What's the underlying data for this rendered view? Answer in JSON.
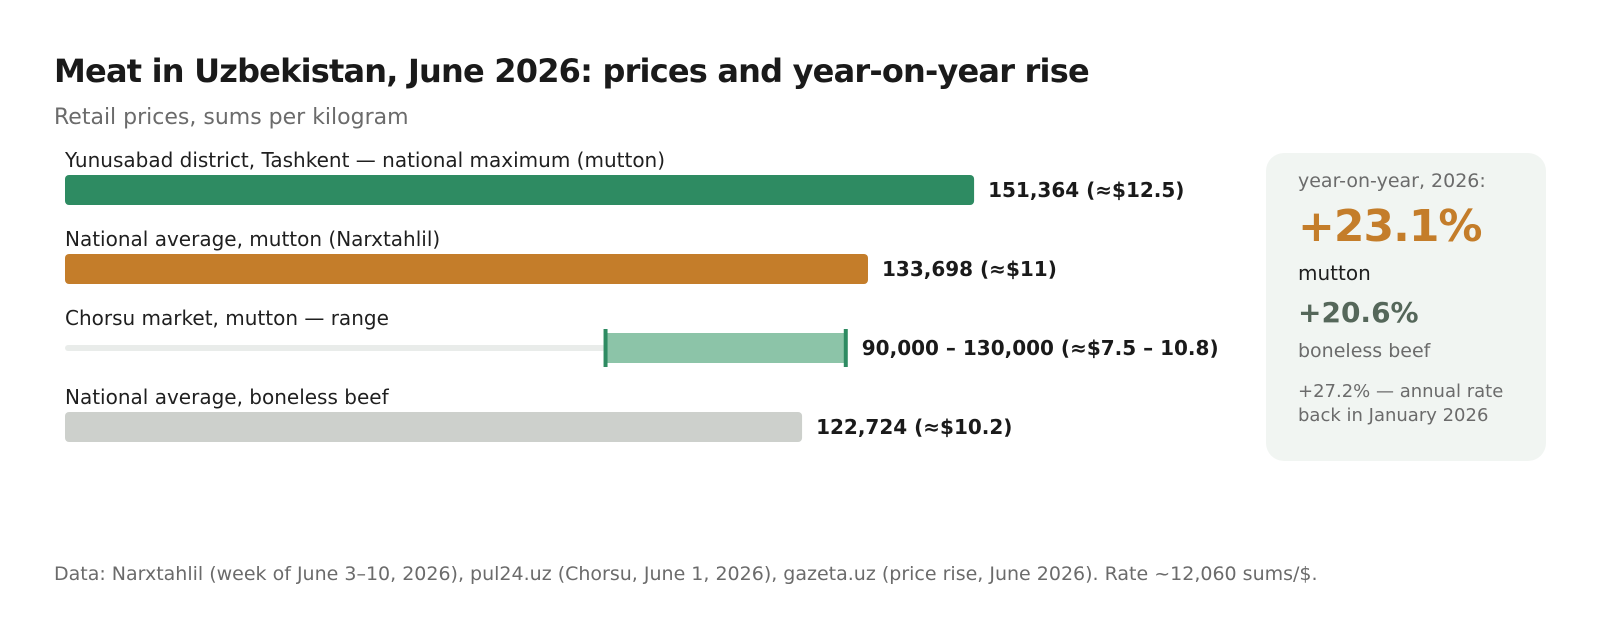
{
  "chart_data": {
    "type": "bar",
    "title": "Meat in Uzbekistan, June 2026: prices and year-on-year rise",
    "subtitle": "Retail prices, sums per kilogram",
    "xlim": [
      0,
      166500
    ],
    "rows": [
      {
        "label": "Yunusabad district, Tashkent — national maximum (mutton)",
        "value": 151364,
        "value_label": "151,364 (≈$12.5)",
        "color": "#2e8b62",
        "kind": "bar"
      },
      {
        "label": "National average, mutton (Narxtahlil)",
        "value": 133698,
        "value_label": "133,698 (≈$11)",
        "color": "#c47d2a",
        "kind": "bar"
      },
      {
        "label": "Chorsu market, mutton — range",
        "min": 90000,
        "max": 130000,
        "value_label": "90,000 – 130,000 (≈$7.5 – 10.8)",
        "color": "#8cc4a8",
        "edge_color": "#2e8b62",
        "track_color": "#e9ecea",
        "kind": "range"
      },
      {
        "label": "National average, boneless beef",
        "value": 122724,
        "value_label": "122,724 (≈$10.2)",
        "color": "#cdd0cc",
        "kind": "bar"
      }
    ]
  },
  "panel": {
    "heading": "year-on-year, 2026:",
    "main_value": "+23.1%",
    "main_label": "mutton",
    "second_value": "+20.6%",
    "second_label": "boneless beef",
    "note": "+27.2% — annual rate back in January 2026"
  },
  "footer": "Data: Narxtahlil (week of June 3–10, 2026), pul24.uz (Chorsu, June 1, 2026), gazeta.uz (price rise, June 2026). Rate ~12,060 sums/$."
}
